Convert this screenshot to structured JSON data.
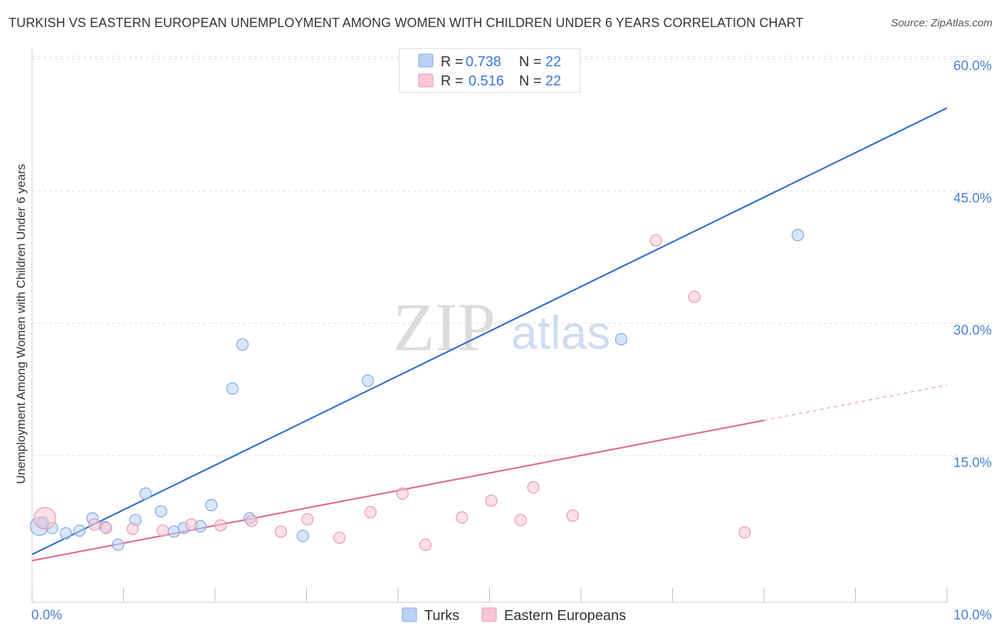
{
  "title": "TURKISH VS EASTERN EUROPEAN UNEMPLOYMENT AMONG WOMEN WITH CHILDREN UNDER 6 YEARS CORRELATION CHART",
  "source": "Source: ZipAtlas.com",
  "watermark": {
    "zip": "ZIP",
    "atlas": "atlas"
  },
  "colors": {
    "turks_fill": "#b8d2f5",
    "turks_stroke": "#7fa8e0",
    "turks_line": "#2f6fce",
    "ee_fill": "#f8c6d4",
    "ee_stroke": "#e897b0",
    "ee_line": "#e06a95",
    "tick": "#4a7fd0",
    "grid": "#dddddd"
  },
  "legend_box": {
    "rows": [
      {
        "series": "turks",
        "r_label": "R =",
        "r_value": "0.738",
        "n_label": "N =",
        "n_value": "22"
      },
      {
        "series": "eastern_europeans",
        "r_label": "R =",
        "r_value": "0.516",
        "n_label": "N =",
        "n_value": "22"
      }
    ]
  },
  "chart_data": {
    "type": "scatter",
    "title": "TURKISH VS EASTERN EUROPEAN UNEMPLOYMENT AMONG WOMEN WITH CHILDREN UNDER 6 YEARS CORRELATION CHART",
    "xlabel": "",
    "ylabel": "Unemployment Among Women with Children Under 6 years",
    "xlim": [
      0,
      10
    ],
    "ylim": [
      0,
      61
    ],
    "x_ticks": [
      0,
      10
    ],
    "x_tick_labels": [
      "0.0%",
      "10.0%"
    ],
    "y_ticks": [
      15,
      30,
      45,
      60
    ],
    "y_tick_labels": [
      "15.0%",
      "30.0%",
      "45.0%",
      "60.0%"
    ],
    "grid": true,
    "legend_position": "bottom-center",
    "series": [
      {
        "name": "Turks",
        "key": "turks",
        "points": [
          {
            "x": 0.08,
            "y": 7.0,
            "size": 1.6
          },
          {
            "x": 0.22,
            "y": 6.8,
            "size": 1.0
          },
          {
            "x": 0.37,
            "y": 6.2,
            "size": 1.0
          },
          {
            "x": 0.52,
            "y": 6.5,
            "size": 1.0
          },
          {
            "x": 0.66,
            "y": 7.9,
            "size": 1.0
          },
          {
            "x": 0.8,
            "y": 6.9,
            "size": 1.0
          },
          {
            "x": 0.94,
            "y": 4.9,
            "size": 1.0
          },
          {
            "x": 1.13,
            "y": 7.7,
            "size": 1.0
          },
          {
            "x": 1.24,
            "y": 10.7,
            "size": 1.0
          },
          {
            "x": 1.41,
            "y": 8.7,
            "size": 1.0
          },
          {
            "x": 1.55,
            "y": 6.4,
            "size": 1.0
          },
          {
            "x": 1.66,
            "y": 6.8,
            "size": 1.0
          },
          {
            "x": 1.84,
            "y": 7.0,
            "size": 1.0
          },
          {
            "x": 1.96,
            "y": 9.4,
            "size": 1.0
          },
          {
            "x": 2.19,
            "y": 22.6,
            "size": 1.0
          },
          {
            "x": 2.3,
            "y": 27.6,
            "size": 1.0
          },
          {
            "x": 2.38,
            "y": 7.9,
            "size": 1.0
          },
          {
            "x": 2.96,
            "y": 5.9,
            "size": 1.0
          },
          {
            "x": 3.67,
            "y": 23.5,
            "size": 1.0
          },
          {
            "x": 6.44,
            "y": 28.2,
            "size": 1.0
          },
          {
            "x": 8.37,
            "y": 40.0,
            "size": 1.0
          },
          {
            "x": 0.12,
            "y": 7.4,
            "size": 1.0
          }
        ],
        "trend": {
          "x0": 0.0,
          "y0": 3.8,
          "x1": 10.0,
          "y1": 54.4
        }
      },
      {
        "name": "Eastern Europeans",
        "key": "eastern_europeans",
        "points": [
          {
            "x": 0.14,
            "y": 7.9,
            "size": 1.9
          },
          {
            "x": 0.68,
            "y": 7.2,
            "size": 1.0
          },
          {
            "x": 0.81,
            "y": 6.8,
            "size": 1.0
          },
          {
            "x": 1.1,
            "y": 6.7,
            "size": 1.0
          },
          {
            "x": 1.43,
            "y": 6.5,
            "size": 1.0
          },
          {
            "x": 1.74,
            "y": 7.2,
            "size": 1.0
          },
          {
            "x": 2.06,
            "y": 7.1,
            "size": 1.0
          },
          {
            "x": 2.4,
            "y": 7.6,
            "size": 1.0
          },
          {
            "x": 2.72,
            "y": 6.4,
            "size": 1.0
          },
          {
            "x": 3.01,
            "y": 7.8,
            "size": 1.0
          },
          {
            "x": 3.36,
            "y": 5.7,
            "size": 1.0
          },
          {
            "x": 3.7,
            "y": 8.6,
            "size": 1.0
          },
          {
            "x": 4.05,
            "y": 10.7,
            "size": 1.0
          },
          {
            "x": 4.3,
            "y": 4.9,
            "size": 1.0
          },
          {
            "x": 4.7,
            "y": 8.0,
            "size": 1.0
          },
          {
            "x": 5.02,
            "y": 9.9,
            "size": 1.0
          },
          {
            "x": 5.34,
            "y": 7.7,
            "size": 1.0
          },
          {
            "x": 5.48,
            "y": 11.4,
            "size": 1.0
          },
          {
            "x": 5.91,
            "y": 8.2,
            "size": 1.0
          },
          {
            "x": 6.82,
            "y": 39.4,
            "size": 1.0
          },
          {
            "x": 7.24,
            "y": 33.0,
            "size": 1.0
          },
          {
            "x": 7.79,
            "y": 6.3,
            "size": 1.0
          }
        ],
        "trend": {
          "x0": 0.0,
          "y0": 3.1,
          "x1": 8.0,
          "y1": 19.0,
          "x_dash_end": 10.0,
          "y_dash_end": 23.0
        }
      }
    ]
  }
}
